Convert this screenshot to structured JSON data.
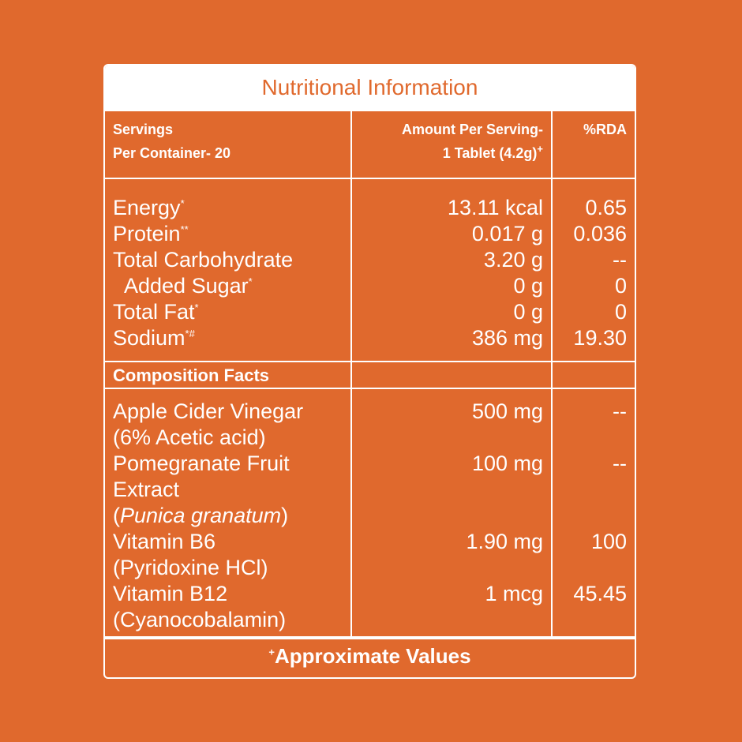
{
  "title": "Nutritional Information",
  "header": {
    "col1_line1": "Servings",
    "col1_line2": "Per Container- 20",
    "col2_line1": "Amount Per Serving-",
    "col2_line2": "1 Tablet (4.2g)",
    "col2_sup": "+",
    "col3": "%RDA"
  },
  "nutrients": [
    {
      "name": "Energy",
      "sup": "*",
      "amount": "13.11 kcal",
      "rda": "0.65"
    },
    {
      "name": "Protein",
      "sup": "**",
      "amount": "0.017 g",
      "rda": "0.036"
    },
    {
      "name": "Total Carbohydrate",
      "sup": "",
      "amount": "3.20 g",
      "rda": "--"
    },
    {
      "name": "Added Sugar",
      "sup": "*",
      "amount": "0 g",
      "rda": "0"
    },
    {
      "name": "Total Fat",
      "sup": "*",
      "amount": "0 g",
      "rda": "0"
    },
    {
      "name": "Sodium",
      "sup": "*#",
      "amount": "386 mg",
      "rda": "19.30"
    }
  ],
  "composition_title": "Composition Facts",
  "composition": [
    {
      "name": "Apple Cider Vinegar",
      "sub": "(6% Acetic acid)",
      "amount": "500 mg",
      "rda": "--"
    },
    {
      "name": "Pomegranate Fruit",
      "name2": "Extract",
      "sub_italic": "Punica granatum",
      "amount": "100 mg",
      "rda": "--"
    },
    {
      "name": "Vitamin B6",
      "sub": "(Pyridoxine HCl)",
      "amount": "1.90 mg",
      "rda": "100"
    },
    {
      "name": "Vitamin B12",
      "sub": "(Cyanocobalamin)",
      "amount": "1 mcg",
      "rda": "45.45"
    }
  ],
  "footer": {
    "sup": "+",
    "text": "Approximate Values"
  },
  "colors": {
    "background": "#E0692D",
    "title_bg": "#FFFFFF",
    "title_text": "#E0692D"
  }
}
